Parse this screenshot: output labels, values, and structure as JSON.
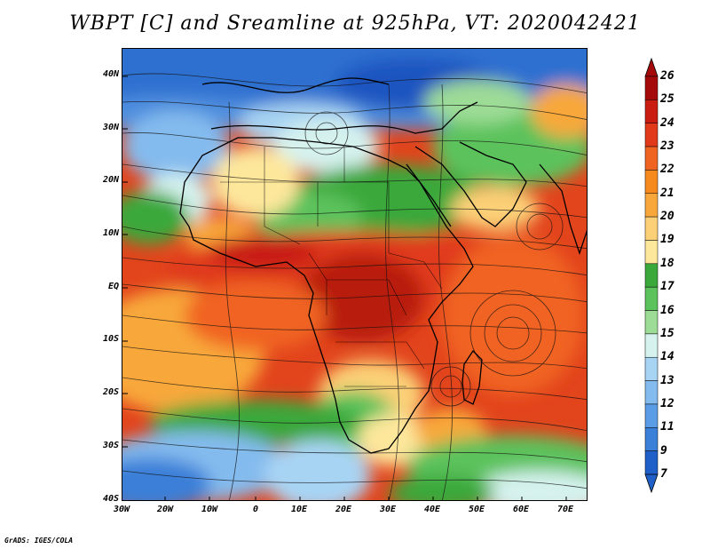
{
  "title": "WBPT [C] and Sreamline at 925hPa, VT: 2020042421",
  "credit": "GrADS: IGES/COLA",
  "lat_labels": [
    "40N",
    "30N",
    "20N",
    "10N",
    "EQ",
    "10S",
    "20S",
    "30S",
    "40S"
  ],
  "lon_labels": [
    "30W",
    "20W",
    "10W",
    "0",
    "10E",
    "20E",
    "30E",
    "40E",
    "50E",
    "60E",
    "70E"
  ],
  "colorbar": {
    "labels": [
      "26",
      "25",
      "24",
      "23",
      "22",
      "21",
      "20",
      "19",
      "18",
      "17",
      "16",
      "15",
      "14",
      "13",
      "12",
      "11",
      "9",
      "7"
    ],
    "colors": [
      "#a50a0a",
      "#c91d12",
      "#e03a1a",
      "#f06422",
      "#f78a1c",
      "#f8a83a",
      "#fbd077",
      "#fde79b",
      "#3aa83a",
      "#5cc25c",
      "#9ddc96",
      "#d5f2ee",
      "#a8d4f4",
      "#84bbee",
      "#5a9de6",
      "#3a7fd8",
      "#1e5fc8"
    ]
  }
}
